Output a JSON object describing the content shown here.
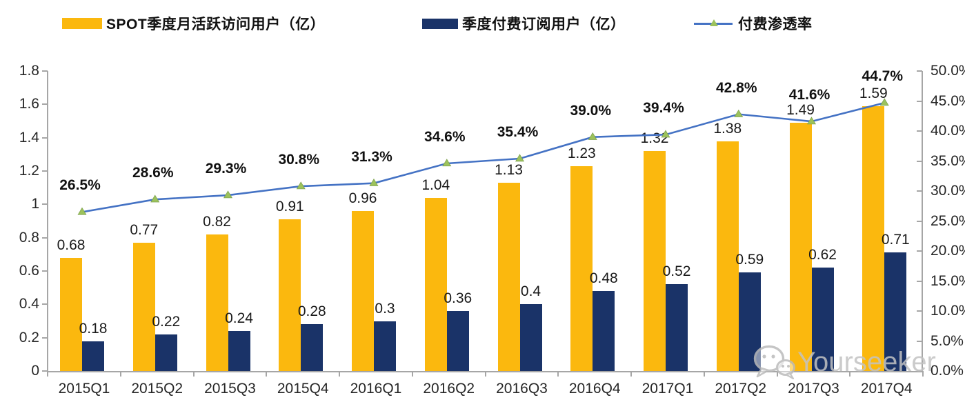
{
  "legend": [
    {
      "label": "SPOT季度月活跃访问用户（亿）",
      "type": "bar"
    },
    {
      "label": "季度付费订阅用户（亿）",
      "type": "bar"
    },
    {
      "label": "付费渗透率",
      "type": "line"
    }
  ],
  "colors": {
    "mau_bar": "#fbb80e",
    "subs_bar": "#1a3368",
    "penetration_line": "#4472c4",
    "penetration_marker": "#9cc25c",
    "penetration_marker_edge": "#7fa34f",
    "axis": "#a6a6a6",
    "text": "#1a1a1a",
    "watermark": "#c3c3c3"
  },
  "watermark": {
    "text": "Yourseeker",
    "icon": "wechat-icon"
  },
  "chart_data": {
    "type": "bar",
    "subtype": "bar+line combo, dual axis",
    "categories": [
      "2015Q1",
      "2015Q2",
      "2015Q3",
      "2015Q4",
      "2016Q1",
      "2016Q2",
      "2016Q3",
      "2016Q4",
      "2017Q1",
      "2017Q2",
      "2017Q3",
      "2017Q4"
    ],
    "series": [
      {
        "name": "SPOT季度月活跃访问用户（亿）",
        "type": "bar",
        "axis": "left",
        "values": [
          0.68,
          0.77,
          0.82,
          0.91,
          0.96,
          1.04,
          1.13,
          1.23,
          1.32,
          1.38,
          1.49,
          1.59
        ]
      },
      {
        "name": "季度付费订阅用户（亿）",
        "type": "bar",
        "axis": "left",
        "values": [
          0.18,
          0.22,
          0.24,
          0.28,
          0.3,
          0.36,
          0.4,
          0.48,
          0.52,
          0.59,
          0.62,
          0.71
        ]
      },
      {
        "name": "付费渗透率",
        "type": "line",
        "axis": "right",
        "unit": "%",
        "marker": "triangle",
        "values": [
          26.5,
          28.6,
          29.3,
          30.8,
          31.3,
          34.6,
          35.4,
          39.0,
          39.4,
          42.8,
          41.6,
          44.7
        ]
      }
    ],
    "left_axis": {
      "min": 0,
      "max": 1.8,
      "ticks": [
        "0",
        "0.2",
        "0.4",
        "0.6",
        "0.8",
        "1",
        "1.2",
        "1.4",
        "1.6",
        "1.8"
      ]
    },
    "right_axis": {
      "min": 0,
      "max": 50,
      "ticks": [
        "0.0%",
        "5.0%",
        "10.0%",
        "15.0%",
        "20.0%",
        "25.0%",
        "30.0%",
        "35.0%",
        "40.0%",
        "45.0%",
        "50.0%"
      ]
    },
    "grid": false,
    "legend_position": "top",
    "title": ""
  }
}
